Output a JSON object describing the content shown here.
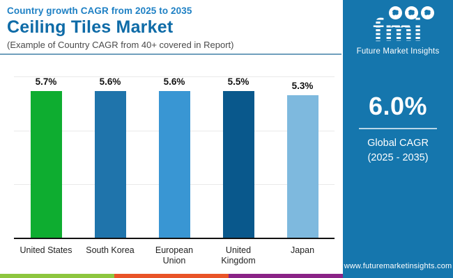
{
  "header": {
    "eyebrow": "Country growth CAGR from 2025 to 2035",
    "title": "Ceiling Tiles Market",
    "subtitle": "(Example of Country CAGR from 40+ covered in Report)"
  },
  "chart_data": {
    "type": "bar",
    "title": "Ceiling Tiles Market — Country growth CAGR from 2025 to 2035",
    "categories": [
      "United States",
      "South Korea",
      "European Union",
      "United Kingdom",
      "Japan"
    ],
    "category_lines": [
      [
        "United States"
      ],
      [
        "South Korea"
      ],
      [
        "European",
        "Union"
      ],
      [
        "United",
        "Kingdom"
      ],
      [
        "Japan"
      ]
    ],
    "values": [
      5.7,
      5.6,
      5.6,
      5.5,
      5.3
    ],
    "value_labels": [
      "5.7%",
      "5.6%",
      "5.6%",
      "5.5%",
      "5.3%"
    ],
    "bar_colors": [
      "#0ead30",
      "#1f74ab",
      "#3996d3",
      "#09588c",
      "#7eb9de"
    ],
    "xlabel": "",
    "ylabel": "",
    "ylim": [
      0,
      6
    ],
    "gridline_values": [
      2,
      4,
      6
    ],
    "grid": true,
    "legend": false
  },
  "sidebar": {
    "background_color": "#1576ad",
    "logo": {
      "word": "fmi",
      "tagline": "Future Market Insights",
      "globe_icons": [
        "north-america-globe",
        "asia-globe",
        "south-america-globe"
      ]
    },
    "stat": {
      "value": "6.0%",
      "label_line1": "Global CAGR",
      "label_line2": "(2025 - 2035)"
    },
    "website": "www.futuremarketinsights.com"
  },
  "footer_stripe": {
    "colors": [
      "#8dc63f",
      "#e95428",
      "#8a2386"
    ]
  }
}
